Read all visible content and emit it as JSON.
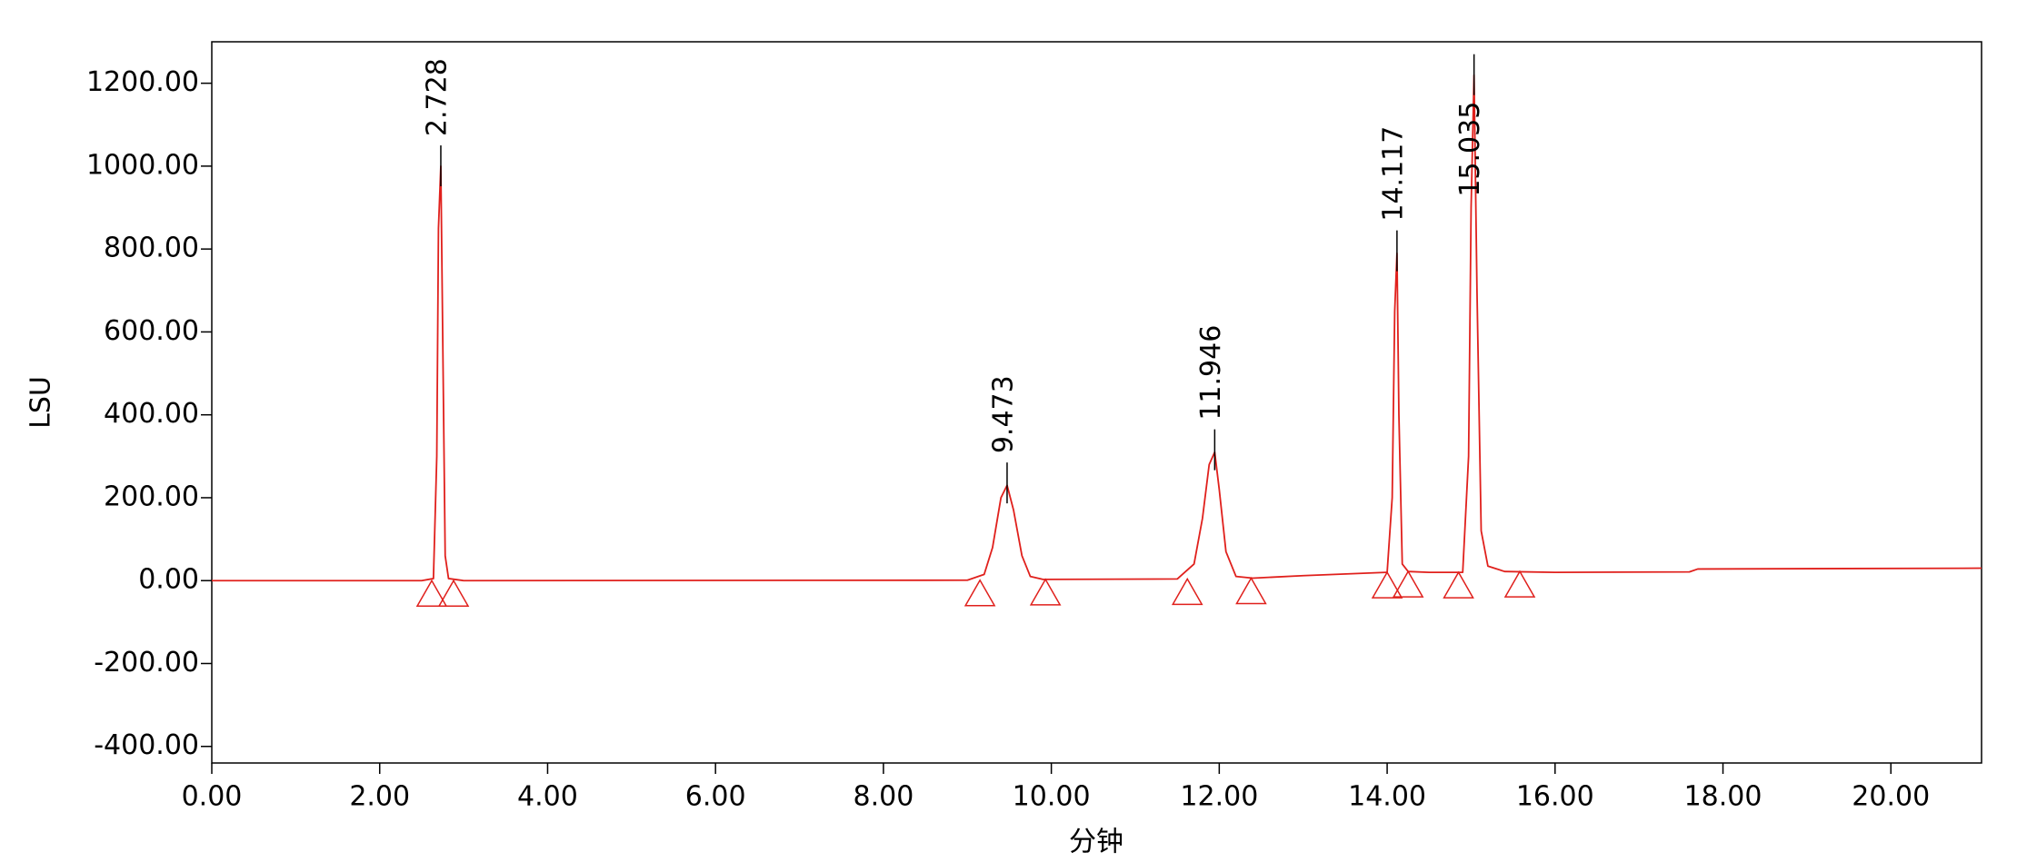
{
  "chart_data": {
    "type": "line",
    "x_label": "分钟",
    "y_label": "LSU",
    "xlim": [
      0,
      21.08
    ],
    "ylim": [
      -440,
      1300
    ],
    "xticks": [
      {
        "value": 0,
        "label": "0.00"
      },
      {
        "value": 2,
        "label": "2.00"
      },
      {
        "value": 4,
        "label": "4.00"
      },
      {
        "value": 6,
        "label": "6.00"
      },
      {
        "value": 8,
        "label": "8.00"
      },
      {
        "value": 10,
        "label": "10.00"
      },
      {
        "value": 12,
        "label": "12.00"
      },
      {
        "value": 14,
        "label": "14.00"
      },
      {
        "value": 16,
        "label": "16.00"
      },
      {
        "value": 18,
        "label": "18.00"
      },
      {
        "value": 20,
        "label": "20.00"
      }
    ],
    "yticks": [
      {
        "value": -400,
        "label": "-400.00"
      },
      {
        "value": -200,
        "label": "-200.00"
      },
      {
        "value": 0,
        "label": "0.00"
      },
      {
        "value": 200,
        "label": "200.00"
      },
      {
        "value": 400,
        "label": "400.00"
      },
      {
        "value": 600,
        "label": "600.00"
      },
      {
        "value": 800,
        "label": "800.00"
      },
      {
        "value": 1000,
        "label": "1000.00"
      },
      {
        "value": 1200,
        "label": "1200.00"
      }
    ],
    "x": [
      0,
      2.5,
      2.64,
      2.68,
      2.7,
      2.728,
      2.75,
      2.78,
      2.82,
      3.0,
      9.0,
      9.2,
      9.3,
      9.4,
      9.473,
      9.55,
      9.65,
      9.75,
      9.9,
      11.5,
      11.7,
      11.8,
      11.88,
      11.946,
      12.0,
      12.08,
      12.2,
      12.4,
      13.0,
      14.0,
      14.06,
      14.09,
      14.117,
      14.14,
      14.18,
      14.25,
      14.5,
      14.9,
      14.97,
      15.0,
      15.035,
      15.07,
      15.12,
      15.2,
      15.4,
      16.0,
      17.6,
      17.7,
      21.08
    ],
    "series": [
      {
        "color": "#e0201c",
        "values": [
          0,
          0,
          5,
          300,
          850,
          1000,
          600,
          60,
          5,
          0,
          1,
          15,
          80,
          200,
          230,
          170,
          60,
          10,
          3,
          4,
          40,
          150,
          280,
          310,
          220,
          70,
          10,
          6,
          12,
          20,
          200,
          650,
          790,
          400,
          40,
          22,
          20,
          20,
          300,
          900,
          1220,
          700,
          120,
          35,
          22,
          20,
          21,
          28,
          30
        ]
      }
    ],
    "peaks": [
      {
        "x": 2.728,
        "top": 1050
      },
      {
        "x": 9.473,
        "top": 285
      },
      {
        "x": 11.946,
        "top": 365
      },
      {
        "x": 14.117,
        "top": 845
      },
      {
        "x": 15.035,
        "top": 1270
      }
    ],
    "markers": {
      "x": [
        2.62,
        2.88,
        9.15,
        9.93,
        11.62,
        12.38,
        14.0,
        14.25,
        14.85,
        15.58
      ],
      "y": [
        0,
        0,
        1,
        3,
        4,
        6,
        20,
        22,
        20,
        22
      ]
    }
  }
}
